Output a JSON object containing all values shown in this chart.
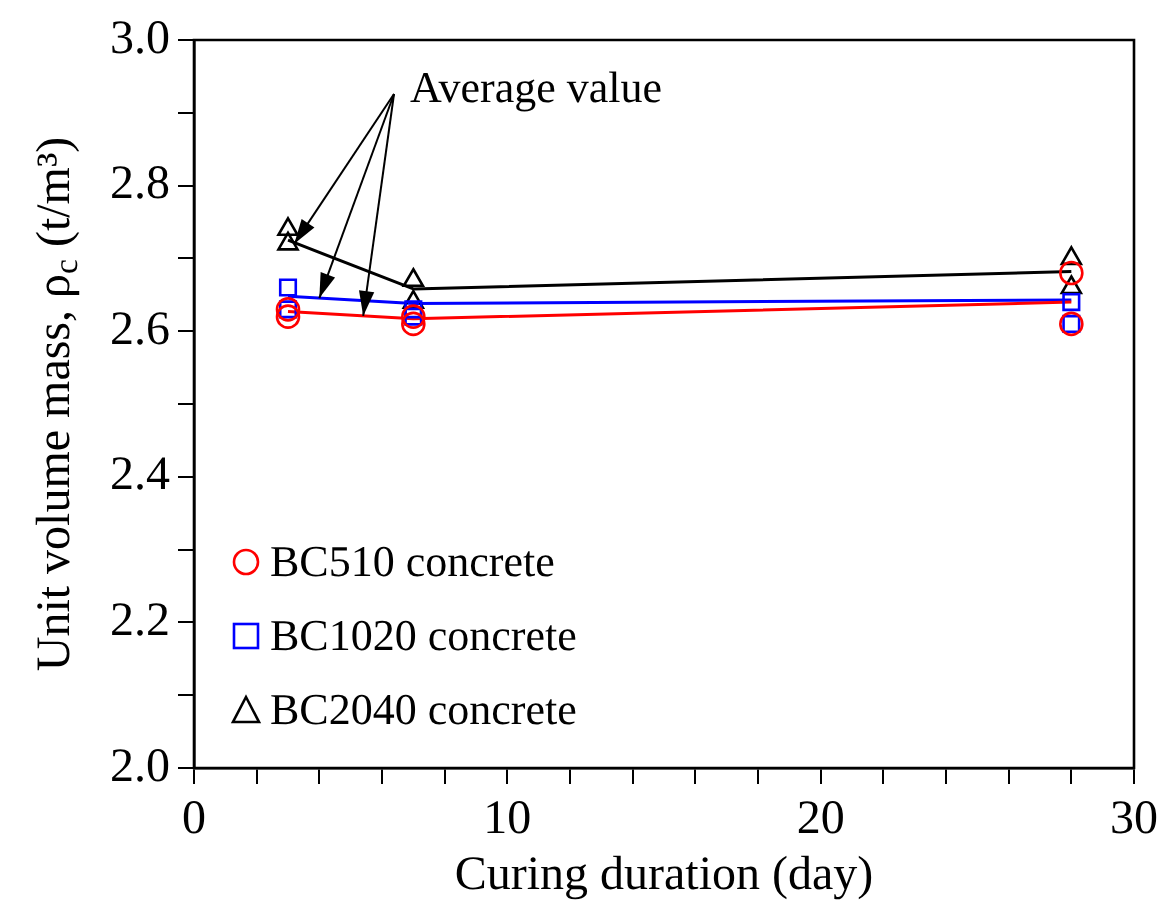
{
  "chart_data": {
    "type": "scatter",
    "xlabel": "Curing duration (day)",
    "ylabel": "Unit volume mass, ρ$_{c}$ (t/m³)",
    "xlim": [
      0,
      30
    ],
    "xticks": [
      0,
      {
        "value": 2,
        "label": null
      },
      {
        "value": 4,
        "label": null
      },
      {
        "value": 6,
        "label": null
      },
      {
        "value": 8,
        "label": null
      },
      10,
      {
        "value": 12,
        "label": null
      },
      {
        "value": 14,
        "label": null
      },
      {
        "value": 16,
        "label": null
      },
      {
        "value": 18,
        "label": null
      },
      20,
      {
        "value": 22,
        "label": null
      },
      {
        "value": 24,
        "label": null
      },
      {
        "value": 26,
        "label": null
      },
      {
        "value": 28,
        "label": null
      },
      30
    ],
    "ylim": [
      2.0,
      3.0
    ],
    "yticks": [
      {
        "value": 2.0,
        "label": "2.0"
      },
      {
        "value": 2.1,
        "label": null
      },
      {
        "value": 2.2,
        "label": "2.2"
      },
      {
        "value": 2.3,
        "label": null
      },
      {
        "value": 2.4,
        "label": "2.4"
      },
      {
        "value": 2.5,
        "label": null
      },
      {
        "value": 2.6,
        "label": "2.6"
      },
      {
        "value": 2.7,
        "label": null
      },
      {
        "value": 2.8,
        "label": "2.8"
      },
      {
        "value": 2.9,
        "label": null
      },
      {
        "value": 3.0,
        "label": "3.0"
      }
    ],
    "grid": false,
    "legend": "bottom left",
    "series": [
      {
        "name": "BC510 concrete",
        "type": "scatter",
        "marker": "circle",
        "color": "#ff0000",
        "x": [
          3,
          3,
          7,
          7,
          28,
          28
        ],
        "values": [
          2.62,
          2.63,
          2.61,
          2.62,
          2.68,
          2.61
        ]
      },
      {
        "name": "BC1020 concrete",
        "type": "scatter",
        "marker": "square",
        "color": "#0000ff",
        "x": [
          3,
          3,
          7,
          7,
          28,
          28
        ],
        "values": [
          2.66,
          2.63,
          2.63,
          2.62,
          2.64,
          2.61
        ]
      },
      {
        "name": "BC2040 concrete",
        "type": "scatter",
        "marker": "triangle",
        "color": "#000000",
        "x": [
          3,
          3,
          7,
          7,
          28,
          28
        ],
        "values": [
          2.74,
          2.72,
          2.67,
          2.64,
          2.7,
          2.66
        ]
      },
      {
        "type": "line",
        "marker": "none",
        "color": "#ff0000",
        "x": [
          3,
          7,
          28
        ],
        "values": [
          2.627,
          2.617,
          2.64
        ]
      },
      {
        "type": "line",
        "marker": "none",
        "color": "#0000ff",
        "x": [
          3,
          7,
          28
        ],
        "values": [
          2.648,
          2.638,
          2.643
        ]
      },
      {
        "type": "line",
        "marker": "none",
        "color": "#000000",
        "x": [
          3,
          7,
          28
        ],
        "values": [
          2.725,
          2.658,
          2.682
        ]
      }
    ],
    "annotations": [
      {
        "text": "Average value",
        "x": 3.2,
        "y": 2.72
      }
    ]
  }
}
